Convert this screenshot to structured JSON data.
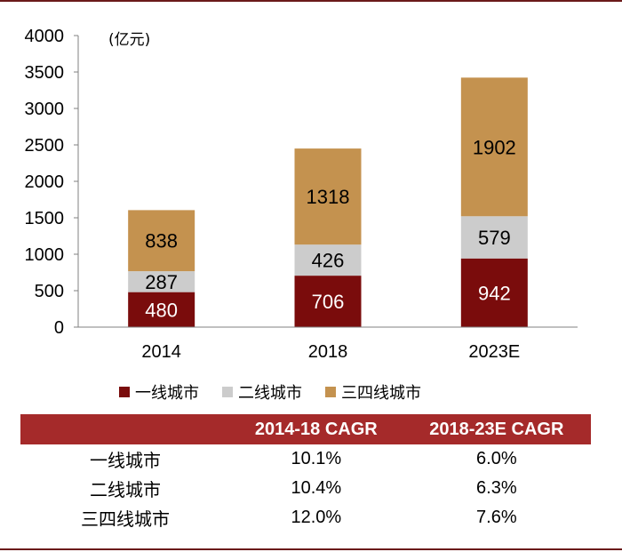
{
  "colors": {
    "frame": "#6b1a1a",
    "tier1": "#7a0c0c",
    "tier2": "#cccccc",
    "tier34": "#c4924f",
    "table_header": "#a52a2a"
  },
  "chart_data": {
    "type": "bar",
    "stacked": true,
    "categories": [
      "2014",
      "2018",
      "2023E"
    ],
    "unit_label": "(亿元)",
    "ylim": [
      0,
      4000
    ],
    "yticks": [
      "0",
      "500",
      "1000",
      "1500",
      "2000",
      "2500",
      "3000",
      "3500",
      "4000"
    ],
    "grid": false,
    "legend_position": "bottom",
    "series": [
      {
        "name": "一线城市",
        "values": [
          480,
          706,
          942
        ]
      },
      {
        "name": "二线城市",
        "values": [
          287,
          426,
          579
        ]
      },
      {
        "name": "三四线城市",
        "values": [
          838,
          1318,
          1902
        ]
      }
    ]
  },
  "table": {
    "headers": [
      "",
      "2014-18 CAGR",
      "2018-23E CAGR"
    ],
    "rows": [
      {
        "label": "一线城市",
        "cagr_2014_18": "10.1%",
        "cagr_2018_23e": "6.0%"
      },
      {
        "label": "二线城市",
        "cagr_2014_18": "10.4%",
        "cagr_2018_23e": "6.3%"
      },
      {
        "label": "三四线城市",
        "cagr_2014_18": "12.0%",
        "cagr_2018_23e": "7.6%"
      }
    ]
  }
}
